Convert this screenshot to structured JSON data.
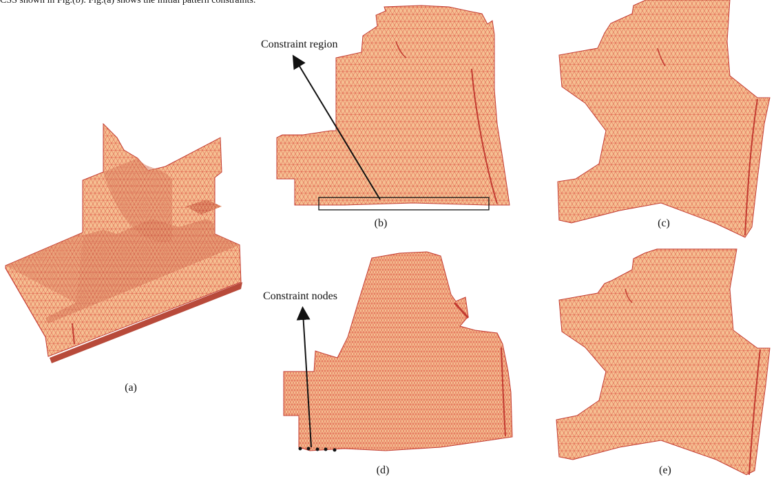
{
  "figure": {
    "top_text": "CSS shown in Fig.(b). Fig.(a) shows the initial pattern constraints.",
    "colors": {
      "mesh_fill": "#f5c092",
      "mesh_fill_dark": "#e2906a",
      "mesh_line": "#d9453a",
      "annotation": "#111111"
    },
    "panels": [
      {
        "id": "a",
        "caption": "(a)"
      },
      {
        "id": "b",
        "caption": "(b)"
      },
      {
        "id": "c",
        "caption": "(c)"
      },
      {
        "id": "d",
        "caption": "(d)"
      },
      {
        "id": "e",
        "caption": "(e)"
      }
    ],
    "annotations": {
      "constraint_region": "Constraint region",
      "constraint_nodes": "Constraint nodes"
    }
  }
}
